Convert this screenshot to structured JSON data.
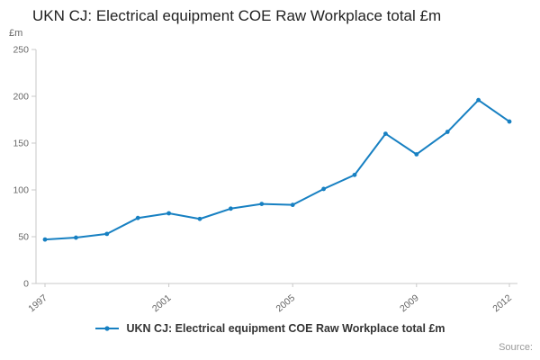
{
  "header": {
    "title": "UKN CJ: Electrical equipment COE Raw Workplace total £m"
  },
  "chart_data": {
    "type": "line",
    "title": "UKN CJ: Electrical equipment COE Raw Workplace total £m",
    "ylabel": "£m",
    "x": [
      1997,
      1998,
      1999,
      2000,
      2001,
      2002,
      2003,
      2004,
      2005,
      2006,
      2007,
      2008,
      2009,
      2010,
      2011,
      2012
    ],
    "values": [
      47,
      49,
      53,
      70,
      75,
      69,
      80,
      85,
      84,
      101,
      116,
      160,
      138,
      162,
      196,
      173
    ],
    "ylim": [
      0,
      250
    ],
    "yticks": [
      0,
      50,
      100,
      150,
      200,
      250
    ],
    "xticks": [
      1997,
      2001,
      2005,
      2009,
      2012
    ],
    "grid": false,
    "legend_position": "bottom",
    "line_color": "#1780c2",
    "axis_color": "#c9c9c9",
    "tick_label_color": "#666666"
  },
  "legend": {
    "label": "UKN CJ: Electrical equipment COE Raw Workplace total £m"
  },
  "footer": {
    "source_label": "Source:"
  }
}
